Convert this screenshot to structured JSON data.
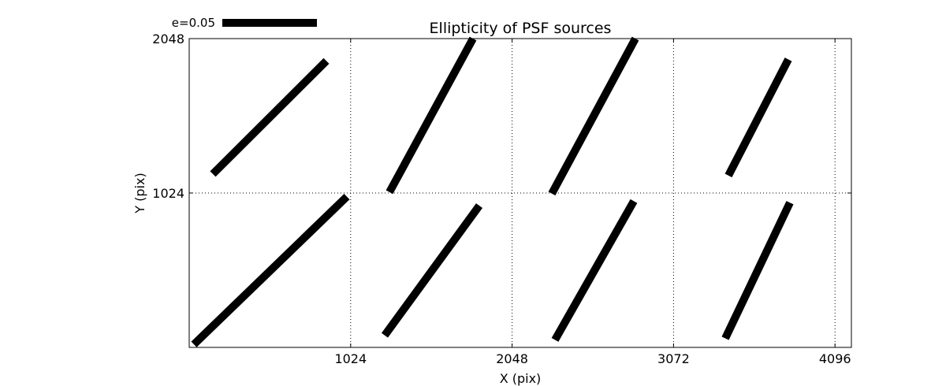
{
  "chart_data": {
    "type": "line",
    "title": "Ellipticity of PSF sources",
    "xlabel": "X (pix)",
    "ylabel": "Y (pix)",
    "xlim": [
      0,
      4200
    ],
    "ylim": [
      0,
      2048
    ],
    "xticks": [
      1024,
      2048,
      3072,
      4096
    ],
    "yticks": [
      1024,
      2048
    ],
    "grid": true,
    "grid_style": "dotted",
    "scale_key": {
      "label": "e=0.05",
      "length_pix": 600
    },
    "segments": [
      {
        "x1": 150,
        "y1": 1150,
        "x2": 870,
        "y2": 1900
      },
      {
        "x1": 1270,
        "y1": 1030,
        "x2": 1800,
        "y2": 2048
      },
      {
        "x1": 2300,
        "y1": 1020,
        "x2": 2830,
        "y2": 2048
      },
      {
        "x1": 3420,
        "y1": 1140,
        "x2": 3800,
        "y2": 1910
      },
      {
        "x1": 30,
        "y1": 20,
        "x2": 1000,
        "y2": 1000
      },
      {
        "x1": 1240,
        "y1": 80,
        "x2": 1840,
        "y2": 940
      },
      {
        "x1": 2320,
        "y1": 50,
        "x2": 2820,
        "y2": 970
      },
      {
        "x1": 3400,
        "y1": 60,
        "x2": 3810,
        "y2": 960
      }
    ],
    "line_color": "#000000"
  }
}
